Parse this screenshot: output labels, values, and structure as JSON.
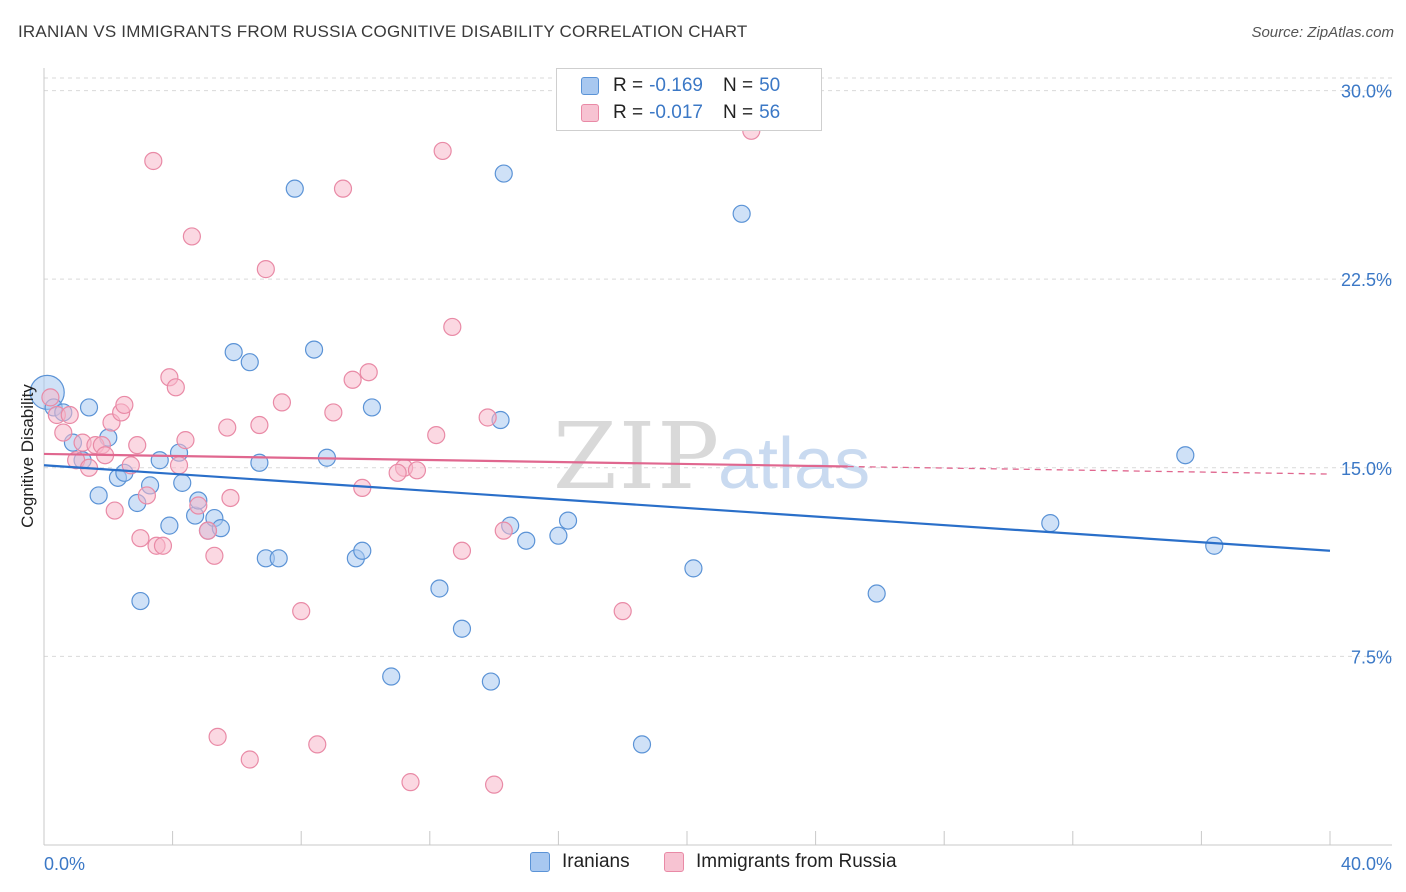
{
  "title": "IRANIAN VS IMMIGRANTS FROM RUSSIA COGNITIVE DISABILITY CORRELATION CHART",
  "source": "Source: ZipAtlas.com",
  "watermark": {
    "zip": "ZIP",
    "atlas": "atlas"
  },
  "legend": {
    "rows": [
      {
        "r_label": "R =",
        "r_value": "-0.169",
        "n_label": "N =",
        "n_value": "50"
      },
      {
        "r_label": "R =",
        "r_value": "-0.017",
        "n_label": "N =",
        "n_value": "56"
      }
    ]
  },
  "bottom_legend": {
    "series1": "Iranians",
    "series2": "Immigrants from Russia"
  },
  "colors": {
    "blue_fill": "#a8c8f0",
    "blue_stroke": "#5b93d6",
    "blue_line": "#2a6fc9",
    "pink_fill": "#f7b8cb",
    "pink_stroke": "#e98aa6",
    "pink_line": "#e0678f",
    "grid": "#d9d9d9",
    "axis_text": "#3b78c6"
  },
  "chart_data": {
    "type": "scatter",
    "title": "IRANIAN VS IMMIGRANTS FROM RUSSIA COGNITIVE DISABILITY CORRELATION CHART",
    "xlabel": "",
    "ylabel": "Cognitive Disability",
    "xlim": [
      0,
      40
    ],
    "ylim": [
      0,
      30.5
    ],
    "x_tick_labels": [
      "0.0%",
      "40.0%"
    ],
    "x_minor_ticks": [
      4,
      8,
      12,
      16,
      20,
      24,
      28,
      32,
      36,
      40
    ],
    "y_ticks": [
      7.5,
      15.0,
      22.5,
      30.0
    ],
    "y_tick_labels": [
      "7.5%",
      "15.0%",
      "22.5%",
      "30.0%"
    ],
    "grid": true,
    "legend_position": "top-center",
    "series": [
      {
        "name": "Iranians",
        "r": -0.169,
        "n": 50,
        "trend": {
          "x": [
            0,
            40
          ],
          "y": [
            15.1,
            11.7
          ]
        },
        "points": [
          {
            "x": 0.1,
            "y": 18.0,
            "big": true
          },
          {
            "x": 0.3,
            "y": 17.4
          },
          {
            "x": 0.6,
            "y": 17.2
          },
          {
            "x": 0.9,
            "y": 16.0
          },
          {
            "x": 1.2,
            "y": 15.3
          },
          {
            "x": 1.4,
            "y": 17.4
          },
          {
            "x": 1.7,
            "y": 13.9
          },
          {
            "x": 2.0,
            "y": 16.2
          },
          {
            "x": 2.3,
            "y": 14.6
          },
          {
            "x": 2.5,
            "y": 14.8
          },
          {
            "x": 2.9,
            "y": 13.6
          },
          {
            "x": 3.0,
            "y": 9.7
          },
          {
            "x": 3.3,
            "y": 14.3
          },
          {
            "x": 3.6,
            "y": 15.3
          },
          {
            "x": 3.9,
            "y": 12.7
          },
          {
            "x": 4.2,
            "y": 15.6
          },
          {
            "x": 4.3,
            "y": 14.4
          },
          {
            "x": 4.7,
            "y": 13.1
          },
          {
            "x": 4.8,
            "y": 13.7
          },
          {
            "x": 5.1,
            "y": 12.5
          },
          {
            "x": 5.3,
            "y": 13.0
          },
          {
            "x": 5.5,
            "y": 12.6
          },
          {
            "x": 5.9,
            "y": 19.6
          },
          {
            "x": 6.4,
            "y": 19.2
          },
          {
            "x": 6.7,
            "y": 15.2
          },
          {
            "x": 6.9,
            "y": 11.4
          },
          {
            "x": 7.3,
            "y": 11.4
          },
          {
            "x": 7.8,
            "y": 26.1
          },
          {
            "x": 8.4,
            "y": 19.7
          },
          {
            "x": 8.8,
            "y": 15.4
          },
          {
            "x": 9.7,
            "y": 11.4
          },
          {
            "x": 9.9,
            "y": 11.7
          },
          {
            "x": 10.2,
            "y": 17.4
          },
          {
            "x": 10.8,
            "y": 6.7
          },
          {
            "x": 12.3,
            "y": 10.2
          },
          {
            "x": 13.0,
            "y": 8.6
          },
          {
            "x": 13.9,
            "y": 6.5
          },
          {
            "x": 14.2,
            "y": 16.9
          },
          {
            "x": 14.3,
            "y": 26.7
          },
          {
            "x": 14.5,
            "y": 12.7
          },
          {
            "x": 15.0,
            "y": 12.1
          },
          {
            "x": 16.0,
            "y": 12.3
          },
          {
            "x": 16.3,
            "y": 12.9
          },
          {
            "x": 20.2,
            "y": 11.0
          },
          {
            "x": 18.6,
            "y": 4.0
          },
          {
            "x": 21.7,
            "y": 25.1
          },
          {
            "x": 25.9,
            "y": 10.0
          },
          {
            "x": 31.3,
            "y": 12.8
          },
          {
            "x": 35.5,
            "y": 15.5
          },
          {
            "x": 36.4,
            "y": 11.9
          }
        ]
      },
      {
        "name": "Immigrants from Russia",
        "r": -0.017,
        "n": 56,
        "trend": {
          "x": [
            0,
            25
          ],
          "y": [
            15.55,
            15.05
          ]
        },
        "trend_dashed": {
          "x": [
            25,
            40
          ],
          "y": [
            15.05,
            14.75
          ]
        },
        "points": [
          {
            "x": 0.2,
            "y": 17.8
          },
          {
            "x": 0.4,
            "y": 17.1
          },
          {
            "x": 0.6,
            "y": 16.4
          },
          {
            "x": 0.8,
            "y": 17.1
          },
          {
            "x": 1.0,
            "y": 15.3
          },
          {
            "x": 1.2,
            "y": 16.0
          },
          {
            "x": 1.4,
            "y": 15.0
          },
          {
            "x": 1.6,
            "y": 15.9
          },
          {
            "x": 1.8,
            "y": 15.9
          },
          {
            "x": 1.9,
            "y": 15.5
          },
          {
            "x": 2.1,
            "y": 16.8
          },
          {
            "x": 2.2,
            "y": 13.3
          },
          {
            "x": 2.4,
            "y": 17.2
          },
          {
            "x": 2.5,
            "y": 17.5
          },
          {
            "x": 2.7,
            "y": 15.1
          },
          {
            "x": 2.9,
            "y": 15.9
          },
          {
            "x": 3.0,
            "y": 12.2
          },
          {
            "x": 3.2,
            "y": 13.9
          },
          {
            "x": 3.4,
            "y": 27.2
          },
          {
            "x": 3.5,
            "y": 11.9
          },
          {
            "x": 3.7,
            "y": 11.9
          },
          {
            "x": 3.9,
            "y": 18.6
          },
          {
            "x": 4.1,
            "y": 18.2
          },
          {
            "x": 4.2,
            "y": 15.1
          },
          {
            "x": 4.4,
            "y": 16.1
          },
          {
            "x": 4.6,
            "y": 24.2
          },
          {
            "x": 4.8,
            "y": 13.5
          },
          {
            "x": 5.1,
            "y": 12.5
          },
          {
            "x": 5.3,
            "y": 11.5
          },
          {
            "x": 5.4,
            "y": 4.3
          },
          {
            "x": 5.7,
            "y": 16.6
          },
          {
            "x": 5.8,
            "y": 13.8
          },
          {
            "x": 6.4,
            "y": 3.4
          },
          {
            "x": 6.7,
            "y": 16.7
          },
          {
            "x": 6.9,
            "y": 22.9
          },
          {
            "x": 7.4,
            "y": 17.6
          },
          {
            "x": 8.0,
            "y": 9.3
          },
          {
            "x": 8.5,
            "y": 4.0
          },
          {
            "x": 9.0,
            "y": 17.2
          },
          {
            "x": 9.3,
            "y": 26.1
          },
          {
            "x": 9.6,
            "y": 18.5
          },
          {
            "x": 9.9,
            "y": 14.2
          },
          {
            "x": 10.1,
            "y": 18.8
          },
          {
            "x": 11.2,
            "y": 15.0
          },
          {
            "x": 11.4,
            "y": 2.5
          },
          {
            "x": 11.6,
            "y": 14.9
          },
          {
            "x": 12.2,
            "y": 16.3
          },
          {
            "x": 12.4,
            "y": 27.6
          },
          {
            "x": 12.7,
            "y": 20.6
          },
          {
            "x": 13.0,
            "y": 11.7
          },
          {
            "x": 13.8,
            "y": 17.0
          },
          {
            "x": 14.0,
            "y": 2.4
          },
          {
            "x": 14.3,
            "y": 12.5
          },
          {
            "x": 18.0,
            "y": 9.3
          },
          {
            "x": 22.0,
            "y": 28.4
          },
          {
            "x": 11.0,
            "y": 14.8
          }
        ]
      }
    ]
  }
}
